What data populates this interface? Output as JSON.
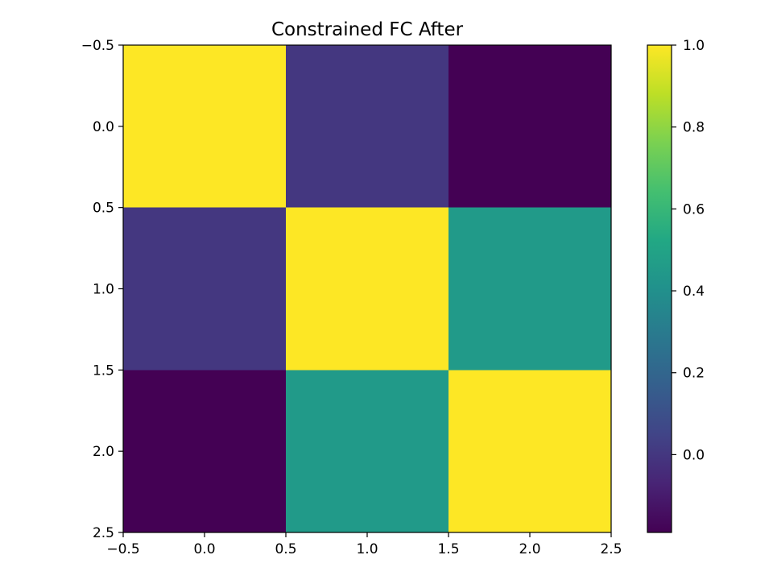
{
  "chart_data": {
    "type": "heatmap",
    "title": "Constrained FC After",
    "xlabel": "",
    "ylabel": "",
    "xlim": [
      -0.5,
      2.5
    ],
    "ylim": [
      2.5,
      -0.5
    ],
    "x_ticks": [
      -0.5,
      0.0,
      0.5,
      1.0,
      1.5,
      2.0,
      2.5
    ],
    "x_tick_labels": [
      "−0.5",
      "0.0",
      "0.5",
      "1.0",
      "1.5",
      "2.0",
      "2.5"
    ],
    "y_ticks": [
      -0.5,
      0.0,
      0.5,
      1.0,
      1.5,
      2.0,
      2.5
    ],
    "y_tick_labels": [
      "−0.5",
      "0.0",
      "0.5",
      "1.0",
      "1.5",
      "2.0",
      "2.5"
    ],
    "matrix": [
      [
        1.0,
        0.0,
        -0.19
      ],
      [
        0.0,
        1.0,
        0.45
      ],
      [
        -0.19,
        0.45,
        1.0
      ]
    ],
    "colormap": "viridis",
    "colorbar": {
      "vmin": -0.19,
      "vmax": 1.0,
      "ticks": [
        0.0,
        0.2,
        0.4,
        0.6,
        0.8,
        1.0
      ],
      "tick_labels": [
        "0.0",
        "0.2",
        "0.4",
        "0.6",
        "0.8",
        "1.0"
      ]
    },
    "grid": false
  }
}
